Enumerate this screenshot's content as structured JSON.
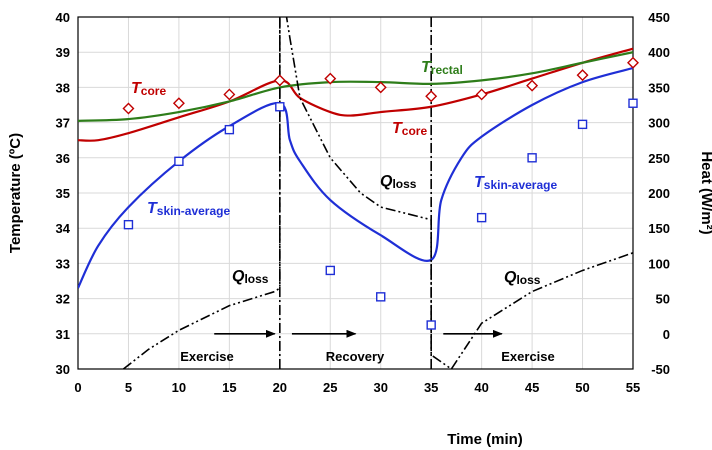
{
  "chart_data": {
    "type": "line",
    "title": "",
    "xlabel": "Time (min)",
    "ylabel_left": "Temperature (ºC)",
    "ylabel_right": "Heat (W/m²)",
    "xlim": [
      0,
      55
    ],
    "ylim_left": [
      30,
      40
    ],
    "ylim_right": [
      -50,
      450
    ],
    "xticks": [
      0,
      5,
      10,
      15,
      20,
      25,
      30,
      35,
      40,
      45,
      50,
      55
    ],
    "yticks_left": [
      30,
      31,
      32,
      33,
      34,
      35,
      36,
      37,
      38,
      39,
      40
    ],
    "yticks_right": [
      -50,
      0,
      50,
      100,
      150,
      200,
      250,
      300,
      350,
      400,
      450
    ],
    "grid": true,
    "colors": {
      "t_core": "#c00000",
      "t_rectal": "#2e7d1a",
      "t_skin": "#1f2fd6",
      "q_loss": "#000000",
      "core_marker": "#c00000",
      "skin_marker": "#1f2fd6"
    },
    "series": [
      {
        "key": "t_core",
        "axis": "left",
        "style": "line",
        "x": [
          0,
          2,
          5,
          10,
          15,
          20,
          22,
          25,
          27,
          30,
          35,
          40,
          45,
          50,
          55
        ],
        "y": [
          36.5,
          36.5,
          36.7,
          37.15,
          37.6,
          38.2,
          37.7,
          37.3,
          37.2,
          37.3,
          37.45,
          37.8,
          38.25,
          38.7,
          39.1
        ]
      },
      {
        "key": "t_rectal",
        "axis": "left",
        "style": "line",
        "x": [
          0,
          5,
          10,
          15,
          20,
          25,
          30,
          35,
          40,
          45,
          50,
          55
        ],
        "y": [
          37.05,
          37.1,
          37.3,
          37.6,
          38.0,
          38.15,
          38.15,
          38.1,
          38.2,
          38.4,
          38.7,
          39.0
        ]
      },
      {
        "key": "t_skin",
        "axis": "left",
        "style": "line",
        "x": [
          0,
          2,
          5,
          10,
          15,
          20,
          21,
          22,
          25,
          30,
          35,
          36,
          38,
          40,
          45,
          50,
          55
        ],
        "y": [
          32.3,
          33.5,
          34.6,
          35.9,
          36.9,
          37.55,
          36.5,
          35.9,
          34.8,
          33.8,
          33.1,
          34.8,
          36.0,
          36.6,
          37.5,
          38.15,
          38.55
        ]
      },
      {
        "key": "q_loss",
        "axis": "right",
        "style": "dash-dot-dot",
        "x": [
          4.5,
          7,
          10,
          15,
          19.5,
          20,
          20,
          21,
          22,
          25,
          28,
          30,
          35,
          35,
          37,
          40,
          45,
          50,
          55
        ],
        "y": [
          -50,
          -22,
          5,
          40,
          60,
          65,
          510,
          420,
          335,
          250,
          200,
          180,
          162,
          -30,
          -50,
          15,
          60,
          90,
          115
        ]
      },
      {
        "key": "core_points",
        "axis": "left",
        "style": "marker-diamond",
        "x": [
          5,
          10,
          15,
          20,
          25,
          30,
          35,
          40,
          45,
          50,
          55
        ],
        "y": [
          37.4,
          37.55,
          37.8,
          38.2,
          38.25,
          38.0,
          37.75,
          37.8,
          38.05,
          38.35,
          38.7
        ]
      },
      {
        "key": "skin_points",
        "axis": "left",
        "style": "marker-square",
        "x": [
          5,
          10,
          15,
          20,
          25,
          30,
          35,
          40,
          45,
          50,
          55
        ],
        "y": [
          34.1,
          35.9,
          36.8,
          37.45,
          32.8,
          32.05,
          31.25,
          34.3,
          36.0,
          36.95,
          37.55
        ]
      }
    ],
    "phase_dividers_x": [
      20,
      35
    ],
    "annotations": {
      "t_core_main": "T",
      "t_core_sub": "core",
      "t_rectal_main": "T",
      "t_rectal_sub": "rectal",
      "t_skin_main": "T",
      "t_skin_sub": "skin-average",
      "q_loss_main": "Q",
      "q_loss_sub": "loss",
      "exercise": "Exercise",
      "recovery": "Recovery"
    }
  }
}
